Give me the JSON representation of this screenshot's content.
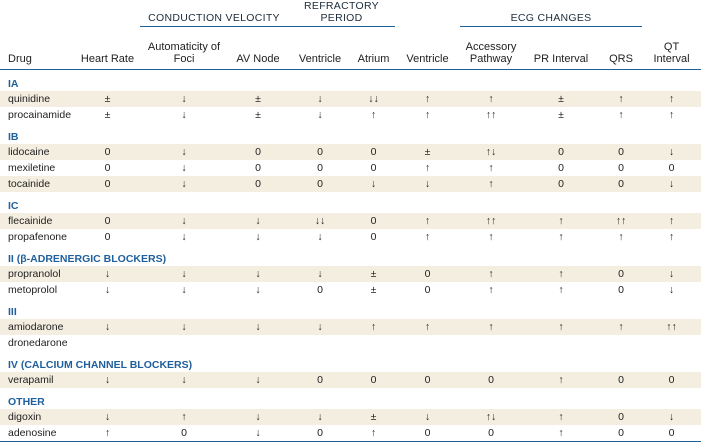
{
  "table": {
    "group_headers": [
      {
        "label": "CONDUCTION VELOCITY",
        "span": 2,
        "start": 3
      },
      {
        "label": "REFRACTORY PERIOD",
        "span": 2,
        "start": 5
      },
      {
        "label": "ECG CHANGES",
        "span": 3,
        "start": 8
      }
    ],
    "columns": [
      "Drug",
      "Heart Rate",
      "Automaticity of Foci",
      "AV Node",
      "Ventricle",
      "Atrium",
      "Ventricle",
      "Accessory Pathway",
      "PR Interval",
      "QRS",
      "QT Interval"
    ],
    "sections": [
      {
        "title": "IA",
        "rows": [
          [
            "quinidine",
            "±",
            "↓",
            "±",
            "↓",
            "↓↓",
            "↑",
            "↑",
            "±",
            "↑",
            "↑"
          ],
          [
            "procainamide",
            "±",
            "↓",
            "±",
            "↓",
            "↑",
            "↑",
            "↑↑",
            "±",
            "↑",
            "↑"
          ]
        ]
      },
      {
        "title": "IB",
        "rows": [
          [
            "lidocaine",
            "0",
            "↓",
            "0",
            "0",
            "0",
            "±",
            "↑↓",
            "0",
            "0",
            "↓"
          ],
          [
            "mexiletine",
            "0",
            "↓",
            "0",
            "0",
            "0",
            "↑",
            "↑",
            "0",
            "0",
            "0"
          ],
          [
            "tocainide",
            "0",
            "↓",
            "0",
            "0",
            "↓",
            "↓",
            "↑",
            "0",
            "0",
            "↓"
          ]
        ]
      },
      {
        "title": "IC",
        "rows": [
          [
            "flecainide",
            "0",
            "↓",
            "↓",
            "↓↓",
            "0",
            "↑",
            "↑↑",
            "↑",
            "↑↑",
            "↑"
          ],
          [
            "propafenone",
            "0",
            "↓",
            "↓",
            "↓",
            "0",
            "↑",
            "↑",
            "↑",
            "↑",
            "↑"
          ]
        ]
      },
      {
        "title": "II (β-ADRENERGIC BLOCKERS)",
        "rows": [
          [
            "propranolol",
            "↓",
            "↓",
            "↓",
            "↓",
            "±",
            "0",
            "↑",
            "↑",
            "0",
            "↓"
          ],
          [
            "metoprolol",
            "↓",
            "↓",
            "↓",
            "0",
            "±",
            "0",
            "↑",
            "↑",
            "0",
            "↓"
          ]
        ]
      },
      {
        "title": "III",
        "rows": [
          [
            "amiodarone",
            "↓",
            "↓",
            "↓",
            "↓",
            "↑",
            "↑",
            "↑",
            "↑",
            "↑",
            "↑↑"
          ],
          [
            "dronedarone"
          ]
        ]
      },
      {
        "title": "IV (CALCIUM CHANNEL BLOCKERS)",
        "rows": [
          [
            "verapamil",
            "↓",
            "↓",
            "↓",
            "0",
            "0",
            "0",
            "0",
            "↑",
            "0",
            "0"
          ]
        ]
      },
      {
        "title": "OTHER",
        "rows": [
          [
            "digoxin",
            "↓",
            "↑",
            "↓",
            "↓",
            "±",
            "↓",
            "↑↓",
            "↑",
            "0",
            "↓"
          ],
          [
            "adenosine",
            "↑",
            "0",
            "↓",
            "0",
            "↑",
            "0",
            "0",
            "↑",
            "0",
            "0"
          ]
        ]
      }
    ]
  }
}
